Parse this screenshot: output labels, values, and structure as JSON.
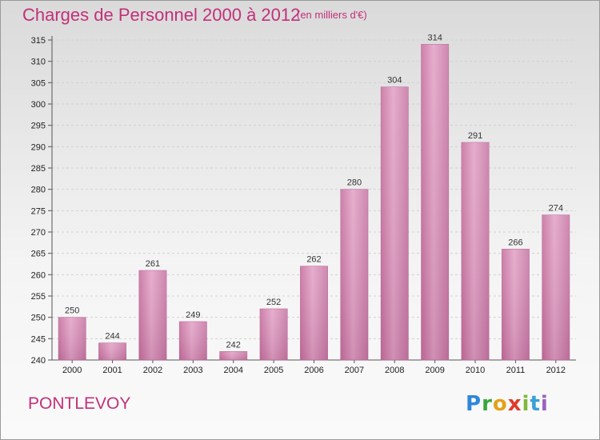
{
  "title": "Charges de Personnel 2000 à 2012",
  "subtitle": "(en milliers d'€)",
  "commune": "PONTLEVOY",
  "logo": [
    "P",
    "r",
    "o",
    "x",
    "i",
    "t",
    "i"
  ],
  "chart_data": {
    "type": "bar",
    "title": "Charges de Personnel 2000 à 2012",
    "subtitle": "(en milliers d'€)",
    "categories": [
      "2000",
      "2001",
      "2002",
      "2003",
      "2004",
      "2005",
      "2006",
      "2007",
      "2008",
      "2009",
      "2010",
      "2011",
      "2012"
    ],
    "values": [
      250,
      244,
      261,
      249,
      242,
      252,
      262,
      280,
      304,
      314,
      291,
      266,
      274
    ],
    "ylim": [
      240,
      315
    ],
    "yticks": [
      240,
      245,
      250,
      255,
      260,
      265,
      270,
      275,
      280,
      285,
      290,
      295,
      300,
      305,
      310,
      315
    ],
    "xlabel": "",
    "ylabel": "",
    "grid": true,
    "bar_color": "#d98fbd"
  }
}
